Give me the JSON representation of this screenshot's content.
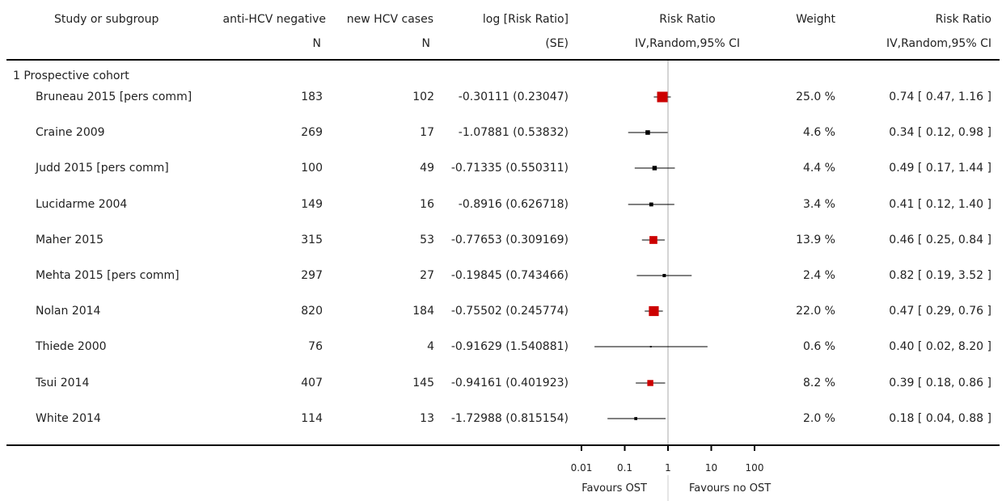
{
  "header": {
    "study": "Study or subgroup",
    "neg_line1": "anti-HCV negative",
    "neg_line2": "N",
    "cases_line1": "new HCV cases",
    "cases_line2": "N",
    "logrr_line1": "log [Risk Ratio]",
    "logrr_line2": "(SE)",
    "rr_plot_line1": "Risk Ratio",
    "rr_plot_line2": "IV,Random,95% CI",
    "weight": "Weight",
    "rr_text_line1": "Risk Ratio",
    "rr_text_line2": "IV,Random,95% CI"
  },
  "subgroup_label": "1 Prospective cohort",
  "footer": {
    "favours_left": "Favours OST",
    "favours_right": "Favours no OST"
  },
  "chart_data": {
    "type": "forest",
    "scale": "log",
    "xlim": [
      0.01,
      100
    ],
    "ticks": [
      "0.01",
      "0.1",
      "1",
      "10",
      "100"
    ],
    "tick_values": [
      0.01,
      0.1,
      1,
      10,
      100
    ],
    "null_line": 1,
    "marker_color": "#cc0000",
    "studies": [
      {
        "name": "Bruneau 2015 [pers comm]",
        "n_neg": "183",
        "n_cases": "102",
        "logrr_se": "-0.30111 (0.23047)",
        "weight": "25.0 %",
        "ci_text": "0.74 [ 0.47, 1.16 ]",
        "rr": 0.74,
        "lo": 0.47,
        "hi": 1.16,
        "w": 25.0
      },
      {
        "name": "Craine 2009",
        "n_neg": "269",
        "n_cases": "17",
        "logrr_se": "-1.07881 (0.53832)",
        "weight": "4.6 %",
        "ci_text": "0.34 [ 0.12, 0.98 ]",
        "rr": 0.34,
        "lo": 0.12,
        "hi": 0.98,
        "w": 4.6
      },
      {
        "name": "Judd 2015 [pers comm]",
        "n_neg": "100",
        "n_cases": "49",
        "logrr_se": "-0.71335 (0.550311)",
        "weight": "4.4 %",
        "ci_text": "0.49 [ 0.17, 1.44 ]",
        "rr": 0.49,
        "lo": 0.17,
        "hi": 1.44,
        "w": 4.4
      },
      {
        "name": "Lucidarme 2004",
        "n_neg": "149",
        "n_cases": "16",
        "logrr_se": "-0.8916 (0.626718)",
        "weight": "3.4 %",
        "ci_text": "0.41 [ 0.12, 1.40 ]",
        "rr": 0.41,
        "lo": 0.12,
        "hi": 1.4,
        "w": 3.4
      },
      {
        "name": "Maher 2015",
        "n_neg": "315",
        "n_cases": "53",
        "logrr_se": "-0.77653 (0.309169)",
        "weight": "13.9 %",
        "ci_text": "0.46 [ 0.25, 0.84 ]",
        "rr": 0.46,
        "lo": 0.25,
        "hi": 0.84,
        "w": 13.9
      },
      {
        "name": "Mehta 2015 [pers comm]",
        "n_neg": "297",
        "n_cases": "27",
        "logrr_se": "-0.19845 (0.743466)",
        "weight": "2.4 %",
        "ci_text": "0.82 [ 0.19, 3.52 ]",
        "rr": 0.82,
        "lo": 0.19,
        "hi": 3.52,
        "w": 2.4
      },
      {
        "name": "Nolan 2014",
        "n_neg": "820",
        "n_cases": "184",
        "logrr_se": "-0.75502 (0.245774)",
        "weight": "22.0 %",
        "ci_text": "0.47 [ 0.29, 0.76 ]",
        "rr": 0.47,
        "lo": 0.29,
        "hi": 0.76,
        "w": 22.0
      },
      {
        "name": "Thiede 2000",
        "n_neg": "76",
        "n_cases": "4",
        "logrr_se": "-0.91629 (1.540881)",
        "weight": "0.6 %",
        "ci_text": "0.40 [ 0.02, 8.20 ]",
        "rr": 0.4,
        "lo": 0.02,
        "hi": 8.2,
        "w": 0.6
      },
      {
        "name": "Tsui 2014",
        "n_neg": "407",
        "n_cases": "145",
        "logrr_se": "-0.94161 (0.401923)",
        "weight": "8.2 %",
        "ci_text": "0.39 [ 0.18, 0.86 ]",
        "rr": 0.39,
        "lo": 0.18,
        "hi": 0.86,
        "w": 8.2
      },
      {
        "name": "White 2014",
        "n_neg": "114",
        "n_cases": "13",
        "logrr_se": "-1.72988 (0.815154)",
        "weight": "2.0 %",
        "ci_text": "0.18 [ 0.04, 0.88 ]",
        "rr": 0.18,
        "lo": 0.04,
        "hi": 0.88,
        "w": 2.0
      }
    ]
  }
}
